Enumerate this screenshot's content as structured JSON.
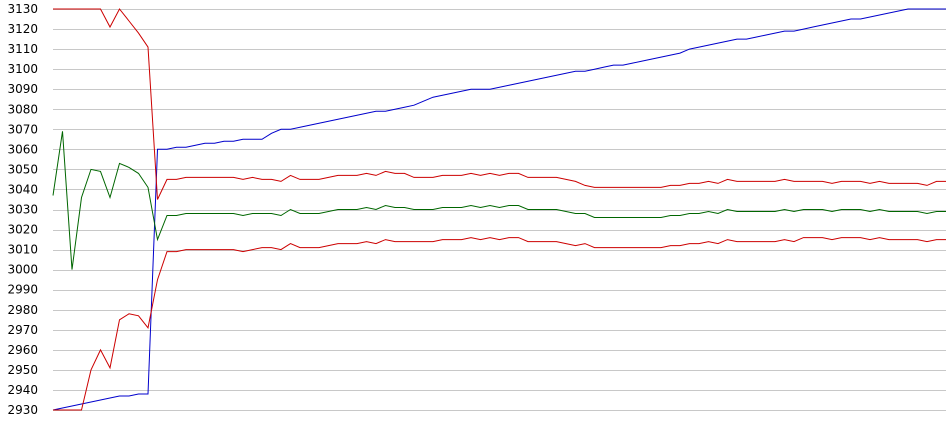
{
  "chart_data": {
    "type": "line",
    "title": "",
    "xlabel": "",
    "ylabel": "",
    "ylim": [
      2930,
      3130
    ],
    "yticks": [
      2930,
      2940,
      2950,
      2960,
      2970,
      2980,
      2990,
      3000,
      3010,
      3020,
      3030,
      3040,
      3050,
      3060,
      3070,
      3080,
      3090,
      3100,
      3110,
      3120,
      3130
    ],
    "grid": true,
    "legend": "none",
    "x": [
      0,
      1,
      2,
      3,
      4,
      5,
      6,
      7,
      8,
      9,
      10,
      11,
      12,
      13,
      14,
      15,
      16,
      17,
      18,
      19,
      20,
      21,
      22,
      23,
      24,
      25,
      26,
      27,
      28,
      29,
      30,
      31,
      32,
      33,
      34,
      35,
      36,
      37,
      38,
      39,
      40,
      41,
      42,
      43,
      44,
      45,
      46,
      47,
      48,
      49,
      50,
      51,
      52,
      53,
      54,
      55,
      56,
      57,
      58,
      59,
      60,
      61,
      62,
      63,
      64,
      65,
      66,
      67,
      68,
      69,
      70,
      71,
      72,
      73,
      74,
      75,
      76,
      77,
      78,
      79,
      80,
      81,
      82,
      83,
      84,
      85,
      86,
      87,
      88,
      89,
      90,
      91,
      92,
      93,
      94
    ],
    "series": [
      {
        "color": "#0000cc",
        "values": [
          2930,
          2931,
          2932,
          2933,
          2934,
          2935,
          2936,
          2937,
          2937,
          2938,
          2938,
          3060,
          3060,
          3061,
          3061,
          3062,
          3063,
          3063,
          3064,
          3064,
          3065,
          3065,
          3065,
          3068,
          3070,
          3070,
          3071,
          3072,
          3073,
          3074,
          3075,
          3076,
          3077,
          3078,
          3079,
          3079,
          3080,
          3081,
          3082,
          3084,
          3086,
          3087,
          3088,
          3089,
          3090,
          3090,
          3090,
          3091,
          3092,
          3093,
          3094,
          3095,
          3096,
          3097,
          3098,
          3099,
          3099,
          3100,
          3101,
          3102,
          3102,
          3103,
          3104,
          3105,
          3106,
          3107,
          3108,
          3110,
          3111,
          3112,
          3113,
          3114,
          3115,
          3115,
          3116,
          3117,
          3118,
          3119,
          3119,
          3120,
          3121,
          3122,
          3123,
          3124,
          3125,
          3125,
          3126,
          3127,
          3128,
          3129,
          3130,
          3130,
          3130,
          3130,
          3130
        ]
      },
      {
        "color": "#cc0000",
        "values": [
          3130,
          3130,
          3130,
          3130,
          3130,
          3130,
          3121,
          3130,
          3124,
          3118,
          3111,
          3035,
          3045,
          3045,
          3046,
          3046,
          3046,
          3046,
          3046,
          3046,
          3045,
          3046,
          3045,
          3045,
          3044,
          3047,
          3045,
          3045,
          3045,
          3046,
          3047,
          3047,
          3047,
          3048,
          3047,
          3049,
          3048,
          3048,
          3046,
          3046,
          3046,
          3047,
          3047,
          3047,
          3048,
          3047,
          3048,
          3047,
          3048,
          3048,
          3046,
          3046,
          3046,
          3046,
          3045,
          3044,
          3042,
          3041,
          3041,
          3041,
          3041,
          3041,
          3041,
          3041,
          3041,
          3042,
          3042,
          3043,
          3043,
          3044,
          3043,
          3045,
          3044,
          3044,
          3044,
          3044,
          3044,
          3045,
          3044,
          3044,
          3044,
          3044,
          3043,
          3044,
          3044,
          3044,
          3043,
          3044,
          3043,
          3043,
          3043,
          3043,
          3042,
          3044,
          3044
        ]
      },
      {
        "color": "#006600",
        "values": [
          3037,
          3069,
          3000,
          3036,
          3050,
          3049,
          3036,
          3053,
          3051,
          3048,
          3041,
          3015,
          3027,
          3027,
          3028,
          3028,
          3028,
          3028,
          3028,
          3028,
          3027,
          3028,
          3028,
          3028,
          3027,
          3030,
          3028,
          3028,
          3028,
          3029,
          3030,
          3030,
          3030,
          3031,
          3030,
          3032,
          3031,
          3031,
          3030,
          3030,
          3030,
          3031,
          3031,
          3031,
          3032,
          3031,
          3032,
          3031,
          3032,
          3032,
          3030,
          3030,
          3030,
          3030,
          3029,
          3028,
          3028,
          3026,
          3026,
          3026,
          3026,
          3026,
          3026,
          3026,
          3026,
          3027,
          3027,
          3028,
          3028,
          3029,
          3028,
          3030,
          3029,
          3029,
          3029,
          3029,
          3029,
          3030,
          3029,
          3030,
          3030,
          3030,
          3029,
          3030,
          3030,
          3030,
          3029,
          3030,
          3029,
          3029,
          3029,
          3029,
          3028,
          3029,
          3029
        ]
      },
      {
        "color": "#cc0000",
        "values": [
          2930,
          2930,
          2930,
          2930,
          2950,
          2960,
          2951,
          2975,
          2978,
          2977,
          2971,
          2995,
          3009,
          3009,
          3010,
          3010,
          3010,
          3010,
          3010,
          3010,
          3009,
          3010,
          3011,
          3011,
          3010,
          3013,
          3011,
          3011,
          3011,
          3012,
          3013,
          3013,
          3013,
          3014,
          3013,
          3015,
          3014,
          3014,
          3014,
          3014,
          3014,
          3015,
          3015,
          3015,
          3016,
          3015,
          3016,
          3015,
          3016,
          3016,
          3014,
          3014,
          3014,
          3014,
          3013,
          3012,
          3013,
          3011,
          3011,
          3011,
          3011,
          3011,
          3011,
          3011,
          3011,
          3012,
          3012,
          3013,
          3013,
          3014,
          3013,
          3015,
          3014,
          3014,
          3014,
          3014,
          3014,
          3015,
          3014,
          3016,
          3016,
          3016,
          3015,
          3016,
          3016,
          3016,
          3015,
          3016,
          3015,
          3015,
          3015,
          3015,
          3014,
          3015,
          3015
        ]
      }
    ]
  }
}
